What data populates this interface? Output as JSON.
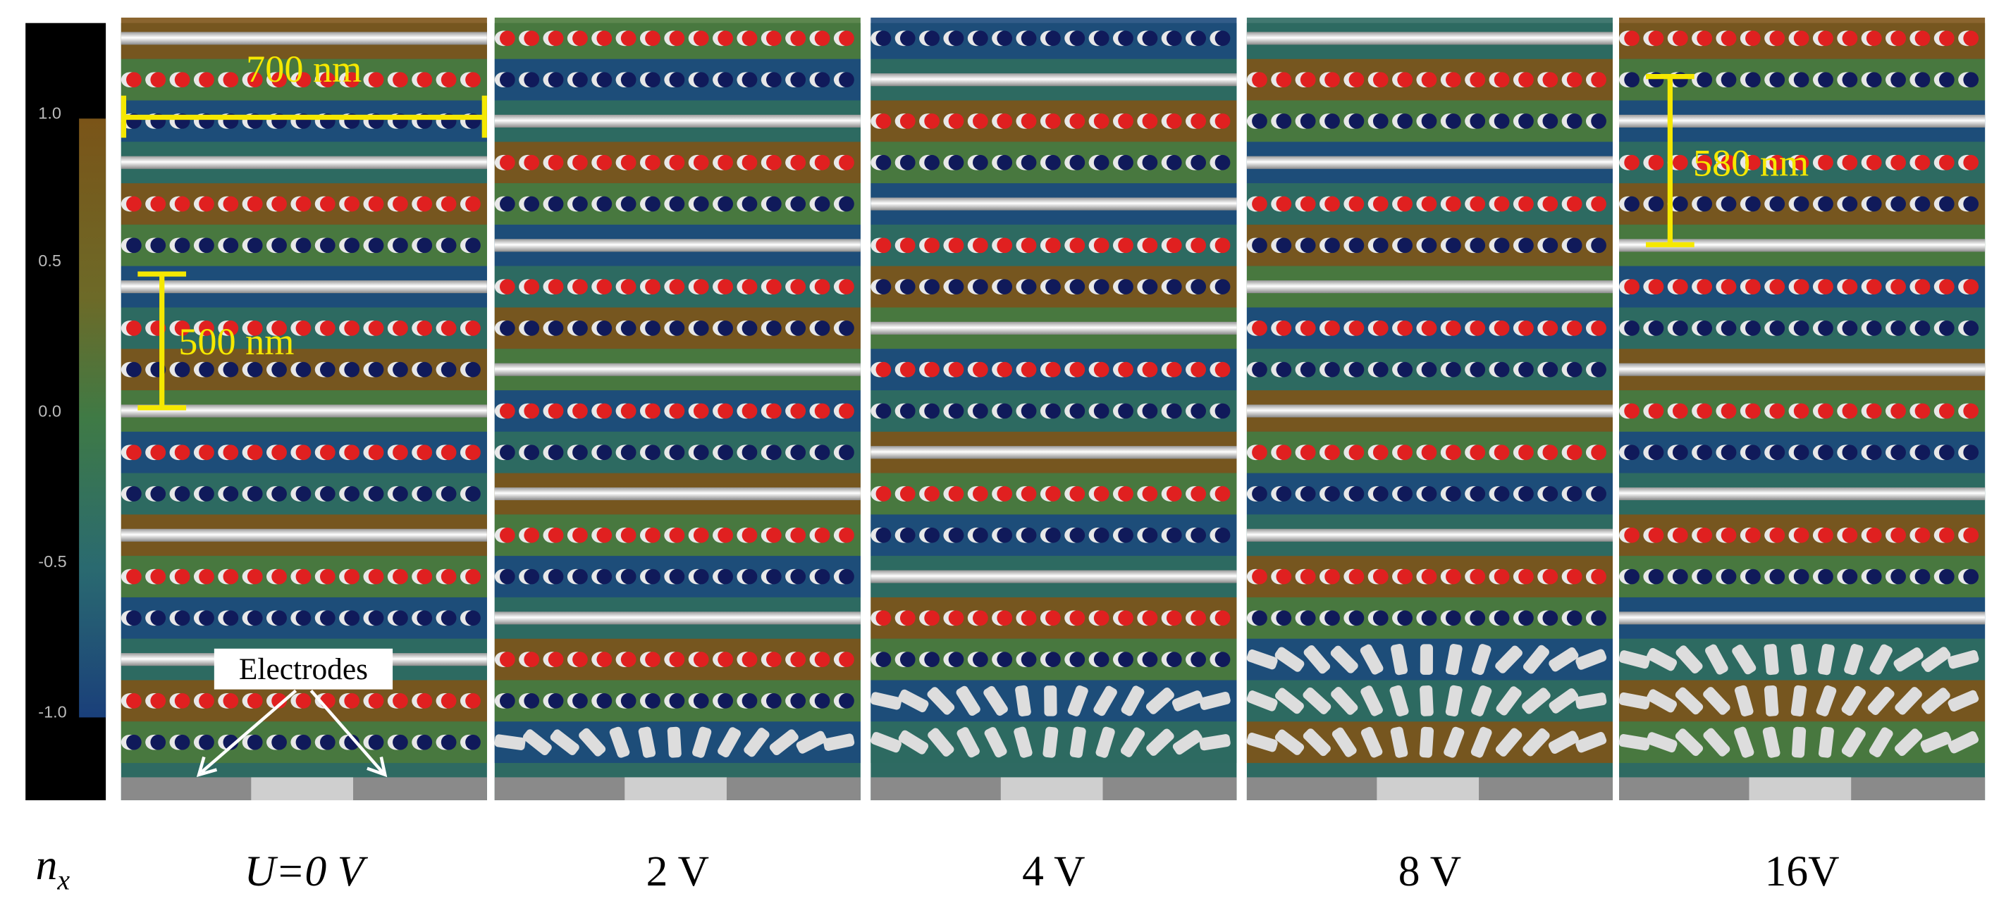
{
  "colorbar": {
    "label": "n",
    "label_sub": "x",
    "ticks": [
      "1.0",
      "0.5",
      "0.0",
      "-0.5",
      "-1.0"
    ]
  },
  "panels": [
    {
      "label": "U=0 V"
    },
    {
      "label": "2 V"
    },
    {
      "label": "4 V"
    },
    {
      "label": "8 V"
    },
    {
      "label": "16V"
    }
  ],
  "annotations": {
    "width": "700 nm",
    "pitch_0v": "500 nm",
    "pitch_16v": "580 nm",
    "electrodes": "Electrodes"
  }
}
